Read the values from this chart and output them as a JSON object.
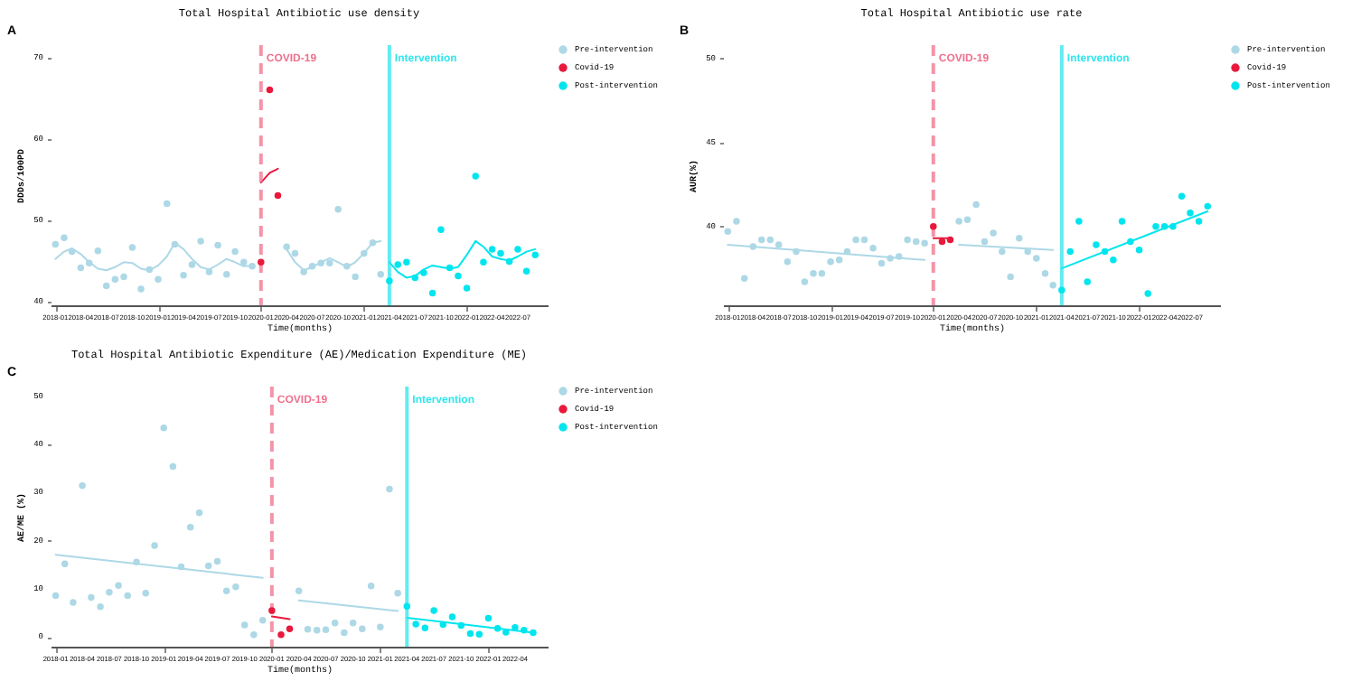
{
  "chart_data": [
    {
      "type": "scatter",
      "title": "Total Hospital Antibiotic use density",
      "xlabel": "Time(months)",
      "ylabel": "DDDs/100PD",
      "annotations": [
        "A"
      ],
      "legend": "right",
      "marker": "circle",
      "xlim": [
        "2017-12-15",
        "2022-10-15"
      ],
      "ylim": [
        39.5,
        71.5
      ],
      "yticks": [
        40,
        50,
        60,
        70
      ],
      "xticks": [
        "2018-01",
        "2018-04",
        "2018-07",
        "2018-10",
        "2019-01",
        "2019-04",
        "2019-07",
        "2019-10",
        "2020-01",
        "2020-04",
        "2020-07",
        "2020-10",
        "2021-01",
        "2021-04",
        "2021-07",
        "2021-10",
        "2022-01",
        "2022-04",
        "2022-07"
      ],
      "ref_lines": [
        {
          "axis": "x",
          "value": "2020-01",
          "label": "COVID-19",
          "color": "#f0708c",
          "line_style": "dashed"
        },
        {
          "axis": "x",
          "value": "2021-04",
          "label": "Intervention",
          "color": "#2ee6ee",
          "line_style": "solid"
        }
      ],
      "series": [
        {
          "name": "Pre-intervention",
          "type": "scatter",
          "color": "#add8e6",
          "x": [
            "2018-01",
            "2018-02",
            "2018-03",
            "2018-04",
            "2018-05",
            "2018-06",
            "2018-07",
            "2018-08",
            "2018-09",
            "2018-10",
            "2018-11",
            "2018-12",
            "2019-01",
            "2019-02",
            "2019-03",
            "2019-04",
            "2019-05",
            "2019-06",
            "2019-07",
            "2019-08",
            "2019-09",
            "2019-10",
            "2019-11",
            "2019-12",
            "2020-04",
            "2020-05",
            "2020-06",
            "2020-07",
            "2020-08",
            "2020-09",
            "2020-10",
            "2020-11",
            "2020-12",
            "2021-01",
            "2021-02",
            "2021-03"
          ],
          "values": [
            47.0,
            47.8,
            46.1,
            44.1,
            44.7,
            46.2,
            41.9,
            42.7,
            43.0,
            46.6,
            41.5,
            43.9,
            42.7,
            52.0,
            47.0,
            43.2,
            44.5,
            47.4,
            43.6,
            46.9,
            43.3,
            46.1,
            44.8,
            44.3,
            46.7,
            45.9,
            43.6,
            44.3,
            44.7,
            44.7,
            51.3,
            44.3,
            43.0,
            45.9,
            47.2,
            43.3
          ]
        },
        {
          "name": "Covid-19",
          "type": "scatter",
          "color": "#e8193c",
          "x": [
            "2020-01",
            "2020-02",
            "2020-03"
          ],
          "values": [
            44.8,
            66.0,
            53.0
          ]
        },
        {
          "name": "Post-intervention",
          "type": "scatter",
          "color": "#00e5ee",
          "x": [
            "2021-04",
            "2021-05",
            "2021-06",
            "2021-07",
            "2021-08",
            "2021-09",
            "2021-10",
            "2021-11",
            "2021-12",
            "2022-01",
            "2022-02",
            "2022-03",
            "2022-04",
            "2022-05",
            "2022-06",
            "2022-07",
            "2022-08",
            "2022-09"
          ],
          "values": [
            42.5,
            44.5,
            44.8,
            42.9,
            43.5,
            41.0,
            48.8,
            44.1,
            43.1,
            41.6,
            55.4,
            44.8,
            46.4,
            45.9,
            44.9,
            46.4,
            43.7,
            45.7
          ]
        },
        {
          "type": "line",
          "marker": "none",
          "color": "#add8e6",
          "x": [
            "2018-01",
            "2018-02",
            "2018-03",
            "2018-04",
            "2018-05",
            "2018-06",
            "2018-07",
            "2018-08",
            "2018-09",
            "2018-10",
            "2018-11",
            "2018-12",
            "2019-01",
            "2019-02",
            "2019-03",
            "2019-04",
            "2019-05",
            "2019-06",
            "2019-07",
            "2019-08",
            "2019-09",
            "2019-10",
            "2019-11",
            "2019-12"
          ],
          "values": [
            45.2,
            46.1,
            46.5,
            45.8,
            44.8,
            44.0,
            43.8,
            44.2,
            44.8,
            44.7,
            44.0,
            43.8,
            44.4,
            45.5,
            47.2,
            46.4,
            45.2,
            44.2,
            43.9,
            44.5,
            45.2,
            44.8,
            44.3,
            44.4
          ]
        },
        {
          "type": "line",
          "marker": "none",
          "color": "#e8193c",
          "x": [
            "2020-01",
            "2020-02",
            "2020-03"
          ],
          "values": [
            54.6,
            55.8,
            56.3
          ]
        },
        {
          "type": "line",
          "marker": "none",
          "color": "#add8e6",
          "x": [
            "2020-04",
            "2020-05",
            "2020-06",
            "2020-07",
            "2020-08",
            "2020-09",
            "2020-10",
            "2020-11",
            "2020-12",
            "2021-01",
            "2021-02",
            "2021-03"
          ],
          "values": [
            46.4,
            44.8,
            43.8,
            44.2,
            44.8,
            45.3,
            44.8,
            44.2,
            44.8,
            45.9,
            47.2,
            47.4
          ]
        },
        {
          "type": "line",
          "marker": "none",
          "color": "#00e5ee",
          "x": [
            "2021-04",
            "2021-05",
            "2021-06",
            "2021-07",
            "2021-08",
            "2021-09",
            "2021-10",
            "2021-11",
            "2021-12",
            "2022-01",
            "2022-02",
            "2022-03",
            "2022-04",
            "2022-05",
            "2022-06",
            "2022-07",
            "2022-08",
            "2022-09"
          ],
          "values": [
            44.8,
            43.6,
            42.9,
            43.1,
            43.9,
            44.4,
            44.2,
            44.0,
            44.2,
            45.7,
            47.4,
            46.7,
            45.5,
            45.2,
            45.0,
            45.5,
            46.1,
            46.4
          ]
        }
      ]
    },
    {
      "type": "scatter",
      "title": "Total Hospital Antibiotic use rate",
      "xlabel": "Time(months)",
      "ylabel": "AUR(%)",
      "annotations": [
        "B"
      ],
      "legend": "right",
      "marker": "circle",
      "xlim": [
        "2017-12-15",
        "2022-10-15"
      ],
      "ylim": [
        35.3,
        50.8
      ],
      "yticks": [
        40,
        45,
        50
      ],
      "xticks": [
        "2018-01",
        "2018-04",
        "2018-07",
        "2018-10",
        "2019-01",
        "2019-04",
        "2019-07",
        "2019-10",
        "2020-01",
        "2020-04",
        "2020-07",
        "2020-10",
        "2021-01",
        "2021-04",
        "2021-07",
        "2021-10",
        "2022-01",
        "2022-04",
        "2022-07"
      ],
      "ref_lines": [
        {
          "axis": "x",
          "value": "2020-01",
          "label": "COVID-19",
          "color": "#f0708c",
          "line_style": "dashed"
        },
        {
          "axis": "x",
          "value": "2021-04",
          "label": "Intervention",
          "color": "#2ee6ee",
          "line_style": "solid"
        }
      ],
      "series": [
        {
          "name": "Pre-intervention",
          "type": "scatter",
          "color": "#add8e6",
          "x": [
            "2018-01",
            "2018-02",
            "2018-03",
            "2018-04",
            "2018-05",
            "2018-06",
            "2018-07",
            "2018-08",
            "2018-09",
            "2018-10",
            "2018-11",
            "2018-12",
            "2019-01",
            "2019-02",
            "2019-03",
            "2019-04",
            "2019-05",
            "2019-06",
            "2019-07",
            "2019-08",
            "2019-09",
            "2019-10",
            "2019-11",
            "2019-12",
            "2020-04",
            "2020-05",
            "2020-06",
            "2020-07",
            "2020-08",
            "2020-09",
            "2020-10",
            "2020-11",
            "2020-12",
            "2021-01",
            "2021-02",
            "2021-03"
          ],
          "values": [
            39.7,
            40.3,
            36.9,
            38.8,
            39.2,
            39.2,
            38.9,
            37.9,
            38.5,
            36.7,
            37.2,
            37.2,
            37.9,
            38.0,
            38.5,
            39.2,
            39.2,
            38.7,
            37.8,
            38.1,
            38.2,
            39.2,
            39.1,
            39.0,
            40.3,
            40.4,
            41.3,
            39.1,
            39.6,
            38.5,
            37.0,
            39.3,
            38.5,
            38.1,
            37.2,
            36.5
          ]
        },
        {
          "name": "Covid-19",
          "type": "scatter",
          "color": "#e8193c",
          "x": [
            "2020-01",
            "2020-02",
            "2020-03"
          ],
          "values": [
            40.0,
            39.1,
            39.2
          ]
        },
        {
          "name": "Post-intervention",
          "type": "scatter",
          "color": "#00e5ee",
          "x": [
            "2021-04",
            "2021-05",
            "2021-06",
            "2021-07",
            "2021-08",
            "2021-09",
            "2021-10",
            "2021-11",
            "2021-12",
            "2022-01",
            "2022-02",
            "2022-03",
            "2022-04",
            "2022-05",
            "2022-06",
            "2022-07",
            "2022-08",
            "2022-09"
          ],
          "values": [
            36.2,
            38.5,
            40.3,
            36.7,
            38.9,
            38.5,
            38.0,
            40.3,
            39.1,
            38.6,
            36.0,
            40.0,
            40.0,
            40.0,
            41.8,
            40.8,
            40.3,
            41.2
          ]
        },
        {
          "type": "line",
          "marker": "none",
          "color": "#add8e6",
          "x": [
            "2018-01",
            "2019-12"
          ],
          "values": [
            38.9,
            38.0
          ]
        },
        {
          "type": "line",
          "marker": "none",
          "color": "#e8193c",
          "x": [
            "2020-01",
            "2020-03"
          ],
          "values": [
            39.3,
            39.3
          ]
        },
        {
          "type": "line",
          "marker": "none",
          "color": "#add8e6",
          "x": [
            "2020-04",
            "2021-03"
          ],
          "values": [
            38.9,
            38.6
          ]
        },
        {
          "type": "line",
          "marker": "none",
          "color": "#00e5ee",
          "x": [
            "2021-04",
            "2022-09"
          ],
          "values": [
            37.5,
            40.9
          ]
        }
      ]
    },
    {
      "type": "scatter",
      "title": "Total Hospital Antibiotic Expenditure (AE)/Medication Expenditure (ME)",
      "xlabel": "Time(months)",
      "ylabel": "AE/ME (%)",
      "annotations": [
        "C"
      ],
      "legend": "right",
      "marker": "circle",
      "xlim": [
        "2017-12-15",
        "2022-07-20"
      ],
      "ylim": [
        -2,
        52
      ],
      "yticks": [
        0,
        10,
        20,
        30,
        40,
        50
      ],
      "xticks": [
        "2018-01",
        "2018-04",
        "2018-07",
        "2018-10",
        "2019-01",
        "2019-04",
        "2019-07",
        "2019-10",
        "2020-01",
        "2020-04",
        "2020-07",
        "2020-10",
        "2021-01",
        "2021-04",
        "2021-07",
        "2021-10",
        "2022-01",
        "2022-04"
      ],
      "ref_lines": [
        {
          "axis": "x",
          "value": "2020-01",
          "label": "COVID-19",
          "color": "#f0708c",
          "line_style": "dashed"
        },
        {
          "axis": "x",
          "value": "2021-04",
          "label": "Intervention",
          "color": "#2ee6ee",
          "line_style": "solid"
        }
      ],
      "series": [
        {
          "name": "Pre-intervention",
          "type": "scatter",
          "color": "#add8e6",
          "x": [
            "2018-01",
            "2018-02",
            "2018-03",
            "2018-04",
            "2018-05",
            "2018-06",
            "2018-07",
            "2018-08",
            "2018-09",
            "2018-10",
            "2018-11",
            "2018-12",
            "2019-01",
            "2019-02",
            "2019-03",
            "2019-04",
            "2019-05",
            "2019-06",
            "2019-07",
            "2019-08",
            "2019-09",
            "2019-10",
            "2019-11",
            "2019-12",
            "2020-04",
            "2020-05",
            "2020-06",
            "2020-07",
            "2020-08",
            "2020-09",
            "2020-10",
            "2020-11",
            "2020-12",
            "2021-01",
            "2021-02",
            "2021-03"
          ],
          "values": [
            8.6,
            15.2,
            7.2,
            31.4,
            8.2,
            6.3,
            9.3,
            10.7,
            8.6,
            15.6,
            9.1,
            19.0,
            43.4,
            35.4,
            14.6,
            22.8,
            25.8,
            14.8,
            15.7,
            9.6,
            10.4,
            2.5,
            0.5,
            3.5,
            9.6,
            1.6,
            1.4,
            1.5,
            2.9,
            0.9,
            2.9,
            1.7,
            10.6,
            2.1,
            30.7,
            9.1
          ]
        },
        {
          "name": "Covid-19",
          "type": "scatter",
          "color": "#e8193c",
          "x": [
            "2020-01",
            "2020-02",
            "2020-03"
          ],
          "values": [
            5.5,
            0.5,
            1.7
          ]
        },
        {
          "name": "Post-intervention",
          "type": "scatter",
          "color": "#00e5ee",
          "x": [
            "2021-04",
            "2021-05",
            "2021-06",
            "2021-07",
            "2021-08",
            "2021-09",
            "2021-10",
            "2021-11",
            "2021-12",
            "2022-01",
            "2022-02",
            "2022-03",
            "2022-04",
            "2022-05",
            "2022-06"
          ],
          "values": [
            6.4,
            2.7,
            1.9,
            5.5,
            2.6,
            4.2,
            2.4,
            0.7,
            0.6,
            3.9,
            1.8,
            1.0,
            2.0,
            1.4,
            0.9
          ]
        },
        {
          "type": "line",
          "marker": "none",
          "color": "#add8e6",
          "x": [
            "2018-01",
            "2019-12"
          ],
          "values": [
            17.1,
            12.3
          ]
        },
        {
          "type": "line",
          "marker": "none",
          "color": "#e8193c",
          "x": [
            "2020-01",
            "2020-03"
          ],
          "values": [
            4.3,
            3.7
          ]
        },
        {
          "type": "line",
          "marker": "none",
          "color": "#add8e6",
          "x": [
            "2020-04",
            "2021-03"
          ],
          "values": [
            7.6,
            5.4
          ]
        },
        {
          "type": "line",
          "marker": "none",
          "color": "#00e5ee",
          "x": [
            "2021-04",
            "2022-06"
          ],
          "values": [
            4.0,
            0.9
          ]
        }
      ]
    }
  ]
}
